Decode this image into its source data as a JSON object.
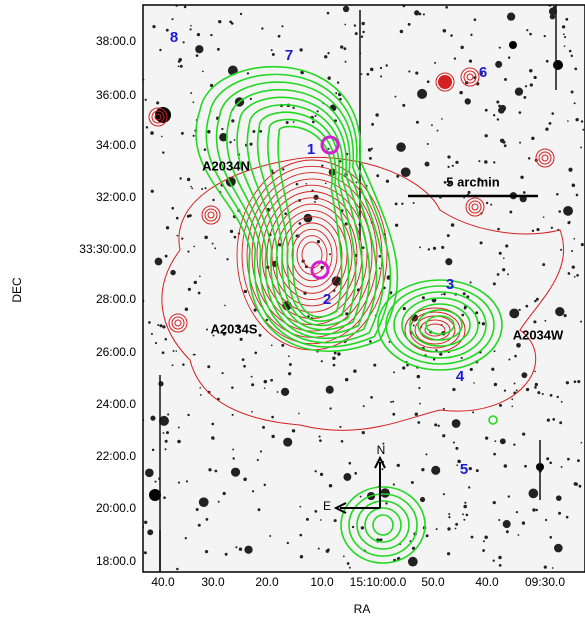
{
  "axes": {
    "x_label": "RA",
    "y_label": "DEC",
    "x_ticks": [
      "40.0",
      "30.0",
      "20.0",
      "10.0",
      "15:10:00.0",
      "50.0",
      "40.0",
      "09:30.0"
    ],
    "y_ticks": [
      "38:00.0",
      "36:00.0",
      "34:00.0",
      "32:00.0",
      "33:30:00.0",
      "28:00.0",
      "26:00.0",
      "24:00.0",
      "22:00.0",
      "20:00.0",
      "18:00.0"
    ]
  },
  "annotations": {
    "region_numbers": [
      "8",
      "7",
      "6",
      "1",
      "2",
      "3",
      "4",
      "5"
    ],
    "cluster_names": [
      "A2034N",
      "A2034S",
      "A2034W"
    ],
    "scale_bar": "5 arcmin",
    "compass_north": "N",
    "compass_east": "E"
  }
}
